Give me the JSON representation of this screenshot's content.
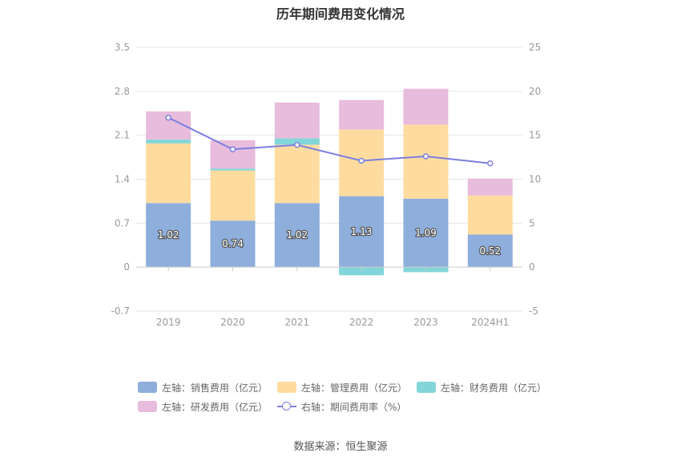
{
  "page": {
    "title": "历年期间费用变化情况",
    "source": "数据来源：恒生聚源"
  },
  "chart_data": {
    "type": "bar",
    "stacked": true,
    "categories": [
      "2019",
      "2020",
      "2021",
      "2022",
      "2023",
      "2024H1"
    ],
    "left_axis": {
      "ylim": [
        -0.7,
        3.5
      ],
      "ticks": [
        "3.5",
        "2.8",
        "2.1",
        "1.4",
        "0.7",
        "0",
        "-0.7"
      ]
    },
    "right_axis": {
      "ylim": [
        -5,
        25
      ],
      "ticks": [
        "25",
        "20",
        "15",
        "10",
        "5",
        "0",
        "-5"
      ]
    },
    "series": [
      {
        "name": "左轴：销售费用（亿元）",
        "type": "bar",
        "axis": "left",
        "color": "#8eaedc",
        "values": [
          1.02,
          0.74,
          1.02,
          1.13,
          1.09,
          0.52
        ],
        "labels": [
          "1.02",
          "0.74",
          "1.02",
          "1.13",
          "1.09",
          "0.52"
        ]
      },
      {
        "name": "左轴：管理费用（亿元）",
        "type": "bar",
        "axis": "left",
        "color": "#fedca0",
        "values": [
          0.95,
          0.8,
          0.93,
          1.06,
          1.18,
          0.62
        ]
      },
      {
        "name": "左轴：财务费用（亿元）",
        "type": "bar",
        "axis": "left",
        "color": "#82d5d8",
        "values": [
          0.06,
          0.03,
          0.1,
          -0.13,
          -0.08,
          0.0
        ]
      },
      {
        "name": "左轴：研发费用（亿元）",
        "type": "bar",
        "axis": "left",
        "color": "#e8bcdc",
        "values": [
          0.45,
          0.45,
          0.57,
          0.47,
          0.57,
          0.27
        ]
      },
      {
        "name": "右轴：期间费用率（%）",
        "type": "line",
        "axis": "right",
        "color": "#7b7fe0",
        "values": [
          17.0,
          13.4,
          13.9,
          12.1,
          12.6,
          11.8
        ]
      }
    ],
    "legend_position": "bottom",
    "grid": true
  }
}
